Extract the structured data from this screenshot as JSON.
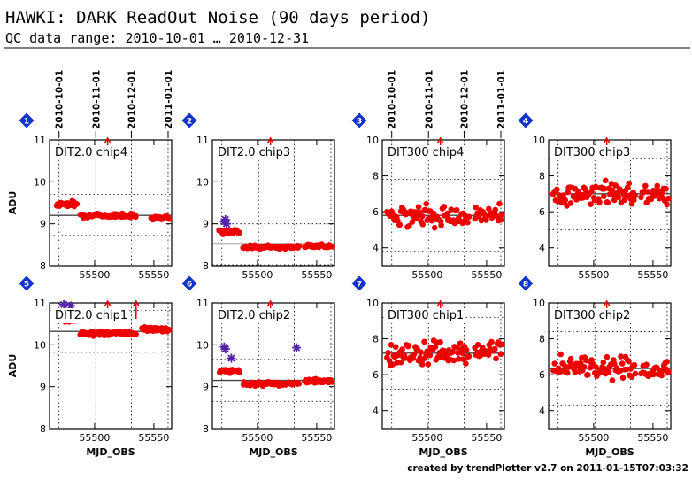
{
  "header": {
    "title": "HAWKI: DARK ReadOut Noise (90 days period)",
    "subtitle": "QC data range: 2010-10-01 … 2010-12-31"
  },
  "footer": "created by trendPlotter v2.7 on 2011-01-15T07:03:32",
  "top_date_ticks": [
    {
      "label": "2010-10-01",
      "mjd": 55470
    },
    {
      "label": "2010-11-01",
      "mjd": 55501
    },
    {
      "label": "2010-12-01",
      "mjd": 55531
    },
    {
      "label": "2011-01-01",
      "mjd": 55562
    }
  ],
  "colors": {
    "points": "#ee0000",
    "outliers": "#5522aa",
    "marker": "#1133cc",
    "average_line": "#444444",
    "arrow": "#dd0000"
  },
  "chart_data": [
    {
      "type": "scatter",
      "id": "1",
      "label": "DIT2.0 chip4",
      "xlabel": "",
      "ylabel": "ADU",
      "xlim": [
        55462,
        55565
      ],
      "ylim": [
        8,
        11
      ],
      "yticks": [
        8,
        9,
        10,
        11
      ],
      "xticks": [
        55500,
        55550
      ],
      "mean": 9.2,
      "band": [
        8.72,
        9.7
      ],
      "segments": [
        {
          "x": [
            55468,
            55485
          ],
          "y": 9.47,
          "spread": 0.05
        },
        {
          "x": [
            55488,
            55535
          ],
          "y": 9.2,
          "spread": 0.03
        },
        {
          "x": [
            55548,
            55563
          ],
          "y": 9.15,
          "spread": 0.04
        }
      ],
      "outliers": [],
      "arrows": [
        55511
      ]
    },
    {
      "type": "scatter",
      "id": "2",
      "label": "DIT2.0 chip3",
      "xlabel": "",
      "ylabel": "",
      "xlim": [
        55462,
        55565
      ],
      "ylim": [
        8,
        11
      ],
      "yticks": [
        8,
        9,
        10,
        11
      ],
      "xticks": [
        55500,
        55550
      ],
      "mean": 8.52,
      "band": [
        8.02,
        9.0
      ],
      "segments": [
        {
          "x": [
            55468,
            55485
          ],
          "y": 8.82,
          "spread": 0.04
        },
        {
          "x": [
            55488,
            55535
          ],
          "y": 8.45,
          "spread": 0.03
        },
        {
          "x": [
            55540,
            55563
          ],
          "y": 8.47,
          "spread": 0.03
        }
      ],
      "outliers": [
        {
          "x": 55472,
          "y": 9.05
        },
        {
          "x": 55473,
          "y": 9.1
        },
        {
          "x": 55474,
          "y": 9.0
        }
      ],
      "arrows": [
        55511
      ]
    },
    {
      "type": "scatter",
      "id": "3",
      "label": "DIT300 chip4",
      "xlabel": "",
      "ylabel": "",
      "xlim": [
        55462,
        55565
      ],
      "ylim": [
        3,
        10
      ],
      "yticks": [
        4,
        6,
        8,
        10
      ],
      "xticks": [
        55500,
        55550
      ],
      "mean": 5.8,
      "band": [
        3.8,
        7.8
      ],
      "segments": [
        {
          "x": [
            55466,
            55535
          ],
          "y": 5.8,
          "spread": 0.4
        },
        {
          "x": [
            55540,
            55563
          ],
          "y": 5.9,
          "spread": 0.35
        }
      ],
      "outliers": [],
      "arrows": [
        55511
      ]
    },
    {
      "type": "scatter",
      "id": "4",
      "label": "DIT300 chip3",
      "xlabel": "",
      "ylabel": "",
      "xlim": [
        55462,
        55565
      ],
      "ylim": [
        3,
        10
      ],
      "yticks": [
        4,
        6,
        8,
        10
      ],
      "xticks": [
        55500,
        55550
      ],
      "mean": 7.0,
      "band": [
        5.0,
        9.0
      ],
      "segments": [
        {
          "x": [
            55466,
            55535
          ],
          "y": 7.0,
          "spread": 0.45
        },
        {
          "x": [
            55540,
            55563
          ],
          "y": 7.0,
          "spread": 0.35
        }
      ],
      "outliers": [],
      "arrows": [
        55511
      ]
    },
    {
      "type": "scatter",
      "id": "5",
      "label": "DIT2.0 chip1",
      "xlabel": "MJD_OBS",
      "ylabel": "ADU",
      "xlim": [
        55462,
        55565
      ],
      "ylim": [
        8,
        11
      ],
      "yticks": [
        8,
        9,
        10,
        11
      ],
      "xticks": [
        55500,
        55550
      ],
      "mean": 10.32,
      "band": [
        9.82,
        10.82
      ],
      "segments": [
        {
          "x": [
            55468,
            55485
          ],
          "y": 10.6,
          "spread": 0.04
        },
        {
          "x": [
            55488,
            55535
          ],
          "y": 10.27,
          "spread": 0.04
        },
        {
          "x": [
            55540,
            55563
          ],
          "y": 10.37,
          "spread": 0.04
        }
      ],
      "outliers": [
        {
          "x": 55474,
          "y": 10.96
        },
        {
          "x": 55480,
          "y": 10.93
        }
      ],
      "arrows": [
        55511,
        55535
      ]
    },
    {
      "type": "scatter",
      "id": "6",
      "label": "DIT2.0 chip2",
      "xlabel": "MJD_OBS",
      "ylabel": "",
      "xlim": [
        55462,
        55565
      ],
      "ylim": [
        8,
        11
      ],
      "yticks": [
        8,
        9,
        10,
        11
      ],
      "xticks": [
        55500,
        55550
      ],
      "mean": 9.15,
      "band": [
        8.65,
        9.65
      ],
      "segments": [
        {
          "x": [
            55468,
            55485
          ],
          "y": 9.37,
          "spread": 0.04
        },
        {
          "x": [
            55488,
            55535
          ],
          "y": 9.07,
          "spread": 0.03
        },
        {
          "x": [
            55540,
            55563
          ],
          "y": 9.13,
          "spread": 0.03
        }
      ],
      "outliers": [
        {
          "x": 55472,
          "y": 9.95
        },
        {
          "x": 55473,
          "y": 9.9
        },
        {
          "x": 55478,
          "y": 9.68
        },
        {
          "x": 55533,
          "y": 9.93
        }
      ],
      "arrows": [
        55511
      ]
    },
    {
      "type": "scatter",
      "id": "7",
      "label": "DIT300 chip1",
      "xlabel": "MJD_OBS",
      "ylabel": "",
      "xlim": [
        55462,
        55565
      ],
      "ylim": [
        3,
        10
      ],
      "yticks": [
        4,
        6,
        8,
        10
      ],
      "xticks": [
        55500,
        55550
      ],
      "mean": 7.2,
      "band": [
        5.2,
        9.2
      ],
      "segments": [
        {
          "x": [
            55466,
            55535
          ],
          "y": 7.2,
          "spread": 0.45
        },
        {
          "x": [
            55540,
            55563
          ],
          "y": 7.3,
          "spread": 0.45
        }
      ],
      "outliers": [],
      "arrows": [
        55511
      ]
    },
    {
      "type": "scatter",
      "id": "8",
      "label": "DIT300 chip2",
      "xlabel": "MJD_OBS",
      "ylabel": "",
      "xlim": [
        55462,
        55565
      ],
      "ylim": [
        3,
        10
      ],
      "yticks": [
        4,
        6,
        8,
        10
      ],
      "xticks": [
        55500,
        55550
      ],
      "mean": 6.35,
      "band": [
        4.3,
        8.4
      ],
      "segments": [
        {
          "x": [
            55466,
            55535
          ],
          "y": 6.4,
          "spread": 0.4
        },
        {
          "x": [
            55540,
            55563
          ],
          "y": 6.2,
          "spread": 0.35
        }
      ],
      "outliers": [],
      "arrows": [
        55511
      ]
    }
  ]
}
